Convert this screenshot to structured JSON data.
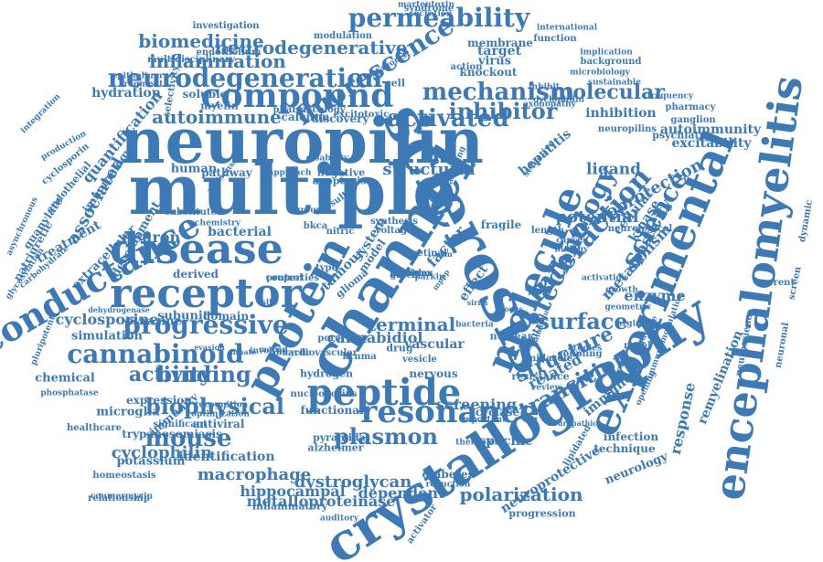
{
  "cloud": {
    "color": "#3d79b5",
    "words": [
      "neuropilin",
      "multiple",
      "channel",
      "sclerosis",
      "crystallography",
      "experimental",
      "encephalomyelitis",
      "protein",
      "molecule",
      "disease",
      "receptor",
      "conductance",
      "peptide",
      "resonance",
      "compound",
      "permeability",
      "neurodegeneration",
      "fluorescence",
      "interaction",
      "science",
      "technology",
      "plasmon",
      "cannabinoid",
      "progressive",
      "mouse",
      "biophysical",
      "activated",
      "inhibitor",
      "mechanism",
      "molecular",
      "biomedicine",
      "neurodegenerative",
      "inflammation",
      "autoimmune",
      "transition",
      "structure",
      "surface",
      "binding",
      "activity",
      "cyclophilin",
      "macrophage",
      "dystroglycan",
      "dependent",
      "polarization",
      "neuroprotection",
      "potential",
      "ligand",
      "spasticity",
      "metabolism",
      "response",
      "remyelination",
      "autoimmunity",
      "excitability",
      "inhibition",
      "hepatitis",
      "cellular",
      "kinase",
      "enzyme",
      "related",
      "immune",
      "screening",
      "cyclase",
      "specific",
      "infection",
      "technique",
      "neurology",
      "neuroprotective",
      "progression",
      "metalloproteinase",
      "hippocampal",
      "inflammatory",
      "identification",
      "potassium",
      "trypanosomiasis",
      "expression",
      "microglia",
      "significant",
      "immunity",
      "antiviral",
      "chemical",
      "cyclosporine",
      "simulation",
      "pyrazine",
      "derived",
      "subunit",
      "domain",
      "neuron",
      "bacterial",
      "human",
      "pathway",
      "soluble",
      "discovery",
      "calcium",
      "myelin",
      "hydration",
      "quantification",
      "treatment",
      "associated",
      "guanylate",
      "endothelial",
      "cyclosporin",
      "production",
      "natriuretic",
      "carbohydrate",
      "glycosylation",
      "asynchronous",
      "extracellular",
      "development",
      "immunology",
      "structural",
      "terminal",
      "cannabidiol",
      "vascular",
      "drug",
      "effect",
      "factor",
      "tumour",
      "glioma",
      "system",
      "model",
      "virus",
      "target",
      "cell",
      "knockout",
      "membrane",
      "function",
      "modulation",
      "syndrome",
      "martentoxin",
      "secretion",
      "investigation",
      "multidisciplinary",
      "endothelium",
      "pharmacology",
      "integration",
      "epithelium",
      "fragment",
      "selectivity",
      "international",
      "implication",
      "background",
      "sustainable",
      "microbiology",
      "axonopathy",
      "dyclophilin",
      "frequency",
      "pharmacy",
      "ganglion",
      "psychiatry",
      "neuropilins",
      "neurological",
      "activation",
      "growth",
      "geometric",
      "arginine",
      "sequence",
      "opening",
      "lipidated",
      "neuropathic",
      "important",
      "therapies",
      "pyramidal",
      "alzheimer",
      "diabetes",
      "reduction",
      "auditory",
      "activator",
      "functional",
      "hydrogen",
      "nucleoporins",
      "cardiovascular",
      "bicyclic",
      "involved",
      "evasion",
      "innate",
      "control",
      "properties",
      "resistance",
      "imidazole",
      "studies",
      "novel",
      "current",
      "screen",
      "dynamic",
      "neuronal",
      "neuroscience",
      "immunomodulation",
      "coumermycin",
      "homeostasis",
      "relationship",
      "healthcare",
      "phosphatase",
      "pluripotent",
      "dehydrogenase",
      "recognition",
      "optimization",
      "substituted",
      "chemistry",
      "antisense",
      "approach",
      "disability",
      "negative",
      "apoptosis",
      "nuclear",
      "central",
      "fragile",
      "length",
      "biology",
      "cancer",
      "nervous",
      "vesicle",
      "kcnma",
      "action",
      "inhibit",
      "antagonist",
      "excitotoxic",
      "selective",
      "targeting",
      "synthesis",
      "voltage",
      "bkca",
      "nitric",
      "group",
      "result",
      "retinal",
      "parkin",
      "mppp",
      "trim",
      "pore",
      "type",
      "sirna",
      "focus",
      "gated",
      "matrix",
      "site",
      "bacteria",
      "analogue",
      "coupling",
      "review",
      "sodium",
      "p130cas",
      "complex"
    ]
  }
}
